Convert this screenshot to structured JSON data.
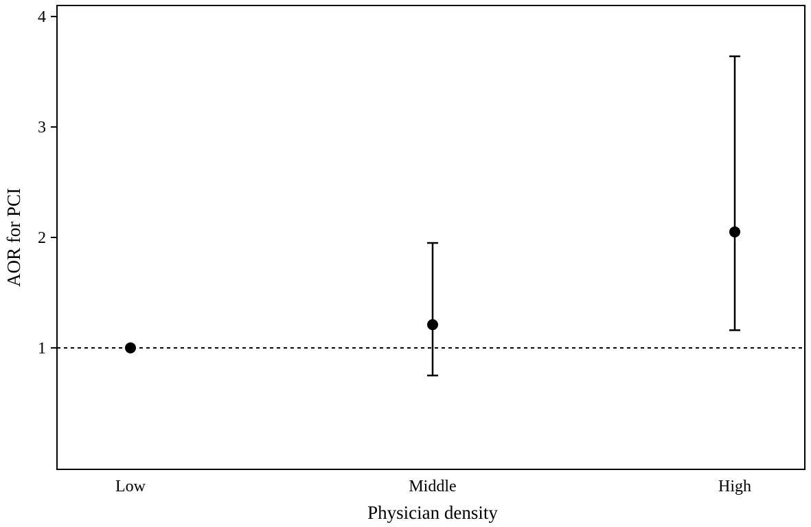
{
  "chart_data": {
    "type": "scatter",
    "xlabel": "Physician density",
    "ylabel": "AOR for PCI",
    "categories": [
      "Low",
      "Middle",
      "High"
    ],
    "series": [
      {
        "values": [
          1.0,
          1.21,
          2.05
        ],
        "ci_lower": [
          null,
          0.75,
          1.16
        ],
        "ci_upper": [
          null,
          1.95,
          3.64
        ]
      }
    ],
    "reference_line": {
      "y": 1,
      "style": "dotted"
    },
    "yticks": [
      1,
      2,
      3,
      4
    ],
    "ylim": [
      -0.1,
      4.1
    ],
    "grid": false,
    "legend": "none"
  }
}
